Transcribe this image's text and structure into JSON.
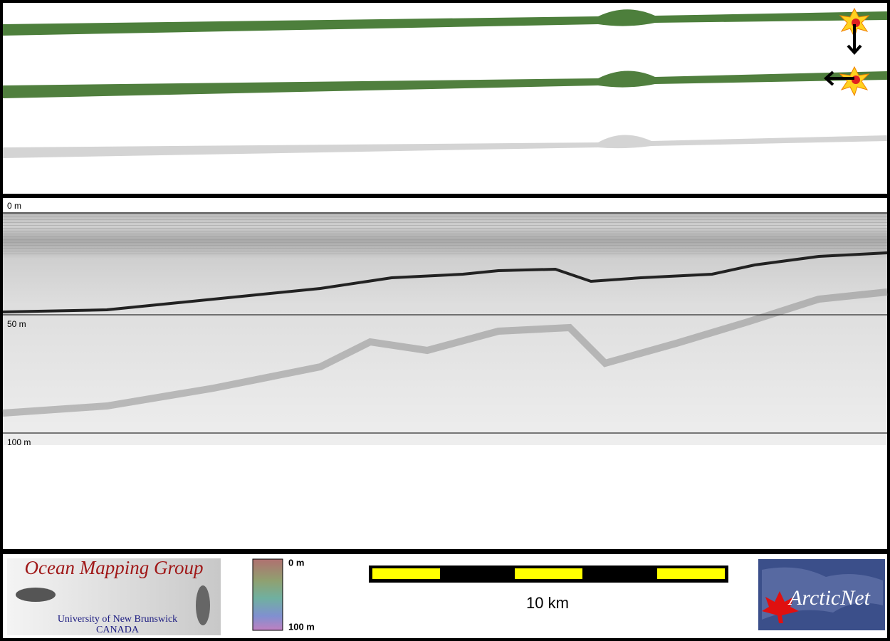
{
  "depth_labels": [
    "0 m",
    "50 m",
    "100 m"
  ],
  "logo_left": {
    "title": "Ocean Mapping Group",
    "line1": "University of New Brunswick",
    "line2": "CANADA"
  },
  "colorbar": {
    "top": "0 m",
    "bottom": "100 m"
  },
  "scale_bar": {
    "label": "10 km"
  },
  "logo_right": {
    "title": "ArcticNet"
  }
}
